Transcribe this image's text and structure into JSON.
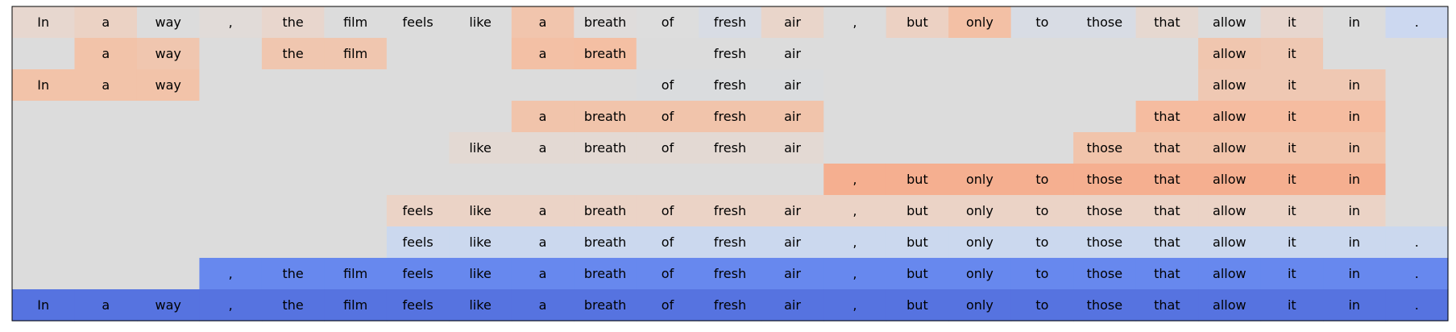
{
  "chart_data": {
    "type": "heatmap",
    "title": "",
    "tokens": [
      "In",
      "a",
      "way",
      ",",
      "the",
      "film",
      "feels",
      "like",
      "a",
      "breath",
      "of",
      "fresh",
      "air",
      ",",
      "but",
      "only",
      "to",
      "those",
      "that",
      "allow",
      "it",
      "in",
      "."
    ],
    "rows": [
      {
        "colors": [
          "#e7d7cf",
          "#ebd2c4",
          "#dcdcdc",
          "#e1dbd8",
          "#e8d6cd",
          "#dcdcdc",
          "#dcdcdc",
          "#dcdcdc",
          "#f1c5ad",
          "#dfdcdb",
          "#dddddd",
          "#d8dce4",
          "#e9d5ca",
          "#dcdcdc",
          "#ecd1c3",
          "#f3c0a5",
          "#d8dce4",
          "#d8dce4",
          "#e6d8d0",
          "#dcdcdc",
          "#e7d6ce",
          "#dcdcdc",
          "#ccd8f0"
        ],
        "present": [
          1,
          1,
          1,
          1,
          1,
          1,
          1,
          1,
          1,
          1,
          1,
          1,
          1,
          1,
          1,
          1,
          1,
          1,
          1,
          1,
          1,
          1,
          1
        ]
      },
      {
        "colors": [
          "#dcdcdc",
          "#f2c3a9",
          "#f0c6af",
          "#dcdcdc",
          "#f0c6af",
          "#f0c6af",
          "#dcdcdc",
          "#dcdcdc",
          "#f3c0a5",
          "#f4bfa3",
          "#dcdcdc",
          "#dcdcdc",
          "#dcdcdc",
          "#dcdcdc",
          "#dcdcdc",
          "#dcdcdc",
          "#dcdcdc",
          "#dcdcdc",
          "#dcdcdc",
          "#f0c6af",
          "#efc8b3",
          "#dcdcdc",
          "#dcdcdc"
        ],
        "present": [
          0,
          1,
          1,
          0,
          1,
          1,
          0,
          0,
          1,
          1,
          0,
          1,
          1,
          0,
          0,
          0,
          0,
          0,
          0,
          1,
          1,
          0,
          0
        ]
      },
      {
        "colors": [
          "#f2c3a9",
          "#f2c3a9",
          "#f2c3a9",
          "#dcdcdc",
          "#dcdcdc",
          "#dcdcdc",
          "#dcdcdc",
          "#dcdcdc",
          "#dcdcdc",
          "#dcdcdc",
          "#dadcde",
          "#dadcde",
          "#dadcde",
          "#dcdcdc",
          "#dcdcdc",
          "#dcdcdc",
          "#dcdcdc",
          "#dcdcdc",
          "#dcdcdc",
          "#efc8b3",
          "#efc8b3",
          "#efc8b3",
          "#dcdcdc"
        ],
        "present": [
          1,
          1,
          1,
          0,
          0,
          0,
          0,
          0,
          0,
          0,
          1,
          1,
          1,
          0,
          0,
          0,
          0,
          0,
          0,
          1,
          1,
          1,
          0
        ]
      },
      {
        "colors": [
          "#dcdcdc",
          "#dcdcdc",
          "#dcdcdc",
          "#dcdcdc",
          "#dcdcdc",
          "#dcdcdc",
          "#dcdcdc",
          "#dcdcdc",
          "#f1c4ab",
          "#f1c4ab",
          "#f1c4ab",
          "#f1c4ab",
          "#f1c4ab",
          "#dcdcdc",
          "#dcdcdc",
          "#dcdcdc",
          "#dcdcdc",
          "#dcdcdc",
          "#f5bca0",
          "#f5bca0",
          "#f5bca0",
          "#f5bca0",
          "#dcdcdc"
        ],
        "present": [
          0,
          0,
          0,
          0,
          0,
          0,
          0,
          0,
          1,
          1,
          1,
          1,
          1,
          0,
          0,
          0,
          0,
          0,
          1,
          1,
          1,
          1,
          0
        ]
      },
      {
        "colors": [
          "#dcdcdc",
          "#dcdcdc",
          "#dcdcdc",
          "#dcdcdc",
          "#dcdcdc",
          "#dcdcdc",
          "#dcdcdc",
          "#e3d9d3",
          "#e3d9d3",
          "#e3d9d3",
          "#e3d9d3",
          "#e3d9d3",
          "#e3d9d3",
          "#dcdcdc",
          "#dcdcdc",
          "#dcdcdc",
          "#dcdcdc",
          "#f1c4ab",
          "#f1c4ab",
          "#f1c4ab",
          "#f1c4ab",
          "#f1c4ab",
          "#dcdcdc"
        ],
        "present": [
          0,
          0,
          0,
          0,
          0,
          0,
          0,
          1,
          1,
          1,
          1,
          1,
          1,
          0,
          0,
          0,
          0,
          1,
          1,
          1,
          1,
          1,
          0
        ]
      },
      {
        "colors": [
          "#dcdcdc",
          "#dcdcdc",
          "#dcdcdc",
          "#dcdcdc",
          "#dcdcdc",
          "#dcdcdc",
          "#dcdcdc",
          "#dcdcdc",
          "#dcdcdc",
          "#dcdcdc",
          "#dcdcdc",
          "#dcdcdc",
          "#dcdcdc",
          "#f5af90",
          "#f5af90",
          "#f5af90",
          "#f5af90",
          "#f5af90",
          "#f5af90",
          "#f5af90",
          "#f5af90",
          "#f5af90",
          "#dcdcdc"
        ],
        "present": [
          0,
          0,
          0,
          0,
          0,
          0,
          0,
          0,
          0,
          0,
          0,
          0,
          0,
          1,
          1,
          1,
          1,
          1,
          1,
          1,
          1,
          1,
          0
        ]
      },
      {
        "colors": [
          "#dcdcdc",
          "#dcdcdc",
          "#dcdcdc",
          "#dcdcdc",
          "#dcdcdc",
          "#dcdcdc",
          "#ebd3c6",
          "#ebd3c6",
          "#ebd3c6",
          "#ebd3c6",
          "#ebd3c6",
          "#ebd3c6",
          "#ebd3c6",
          "#ebd3c6",
          "#ebd3c6",
          "#ebd3c6",
          "#ebd3c6",
          "#ebd3c6",
          "#ebd3c6",
          "#ebd3c6",
          "#ebd3c6",
          "#ebd3c6",
          "#dcdcdc"
        ],
        "present": [
          0,
          0,
          0,
          0,
          0,
          0,
          1,
          1,
          1,
          1,
          1,
          1,
          1,
          1,
          1,
          1,
          1,
          1,
          1,
          1,
          1,
          1,
          0
        ]
      },
      {
        "colors": [
          "#dcdcdc",
          "#dcdcdc",
          "#dcdcdc",
          "#dcdcdc",
          "#dcdcdc",
          "#dcdcdc",
          "#cbd8ee",
          "#cbd8ee",
          "#cbd8ee",
          "#cbd8ee",
          "#cbd8ee",
          "#cbd8ee",
          "#cbd8ee",
          "#cbd8ee",
          "#cbd8ee",
          "#cbd8ee",
          "#cbd8ee",
          "#cbd8ee",
          "#cbd8ee",
          "#cbd8ee",
          "#cbd8ee",
          "#cbd8ee",
          "#cbd8ee"
        ],
        "present": [
          0,
          0,
          0,
          0,
          0,
          0,
          1,
          1,
          1,
          1,
          1,
          1,
          1,
          1,
          1,
          1,
          1,
          1,
          1,
          1,
          1,
          1,
          1
        ]
      },
      {
        "colors": [
          "#dcdcdc",
          "#dcdcdc",
          "#dcdcdc",
          "#6788ee",
          "#6788ee",
          "#6788ee",
          "#6788ee",
          "#6788ee",
          "#6788ee",
          "#6788ee",
          "#6788ee",
          "#6788ee",
          "#6788ee",
          "#6788ee",
          "#6788ee",
          "#6788ee",
          "#6788ee",
          "#6788ee",
          "#6788ee",
          "#6788ee",
          "#6788ee",
          "#6788ee",
          "#6788ee"
        ],
        "present": [
          0,
          0,
          0,
          1,
          1,
          1,
          1,
          1,
          1,
          1,
          1,
          1,
          1,
          1,
          1,
          1,
          1,
          1,
          1,
          1,
          1,
          1,
          1
        ]
      },
      {
        "colors": [
          "#5673e0",
          "#5673e0",
          "#5673e0",
          "#5673e0",
          "#5673e0",
          "#5673e0",
          "#5673e0",
          "#5673e0",
          "#5673e0",
          "#5673e0",
          "#5673e0",
          "#5673e0",
          "#5673e0",
          "#5673e0",
          "#5673e0",
          "#5673e0",
          "#5673e0",
          "#5673e0",
          "#5673e0",
          "#5673e0",
          "#5673e0",
          "#5673e0",
          "#5673e0"
        ],
        "present": [
          1,
          1,
          1,
          1,
          1,
          1,
          1,
          1,
          1,
          1,
          1,
          1,
          1,
          1,
          1,
          1,
          1,
          1,
          1,
          1,
          1,
          1,
          1
        ]
      }
    ],
    "border_color": "#000000"
  }
}
